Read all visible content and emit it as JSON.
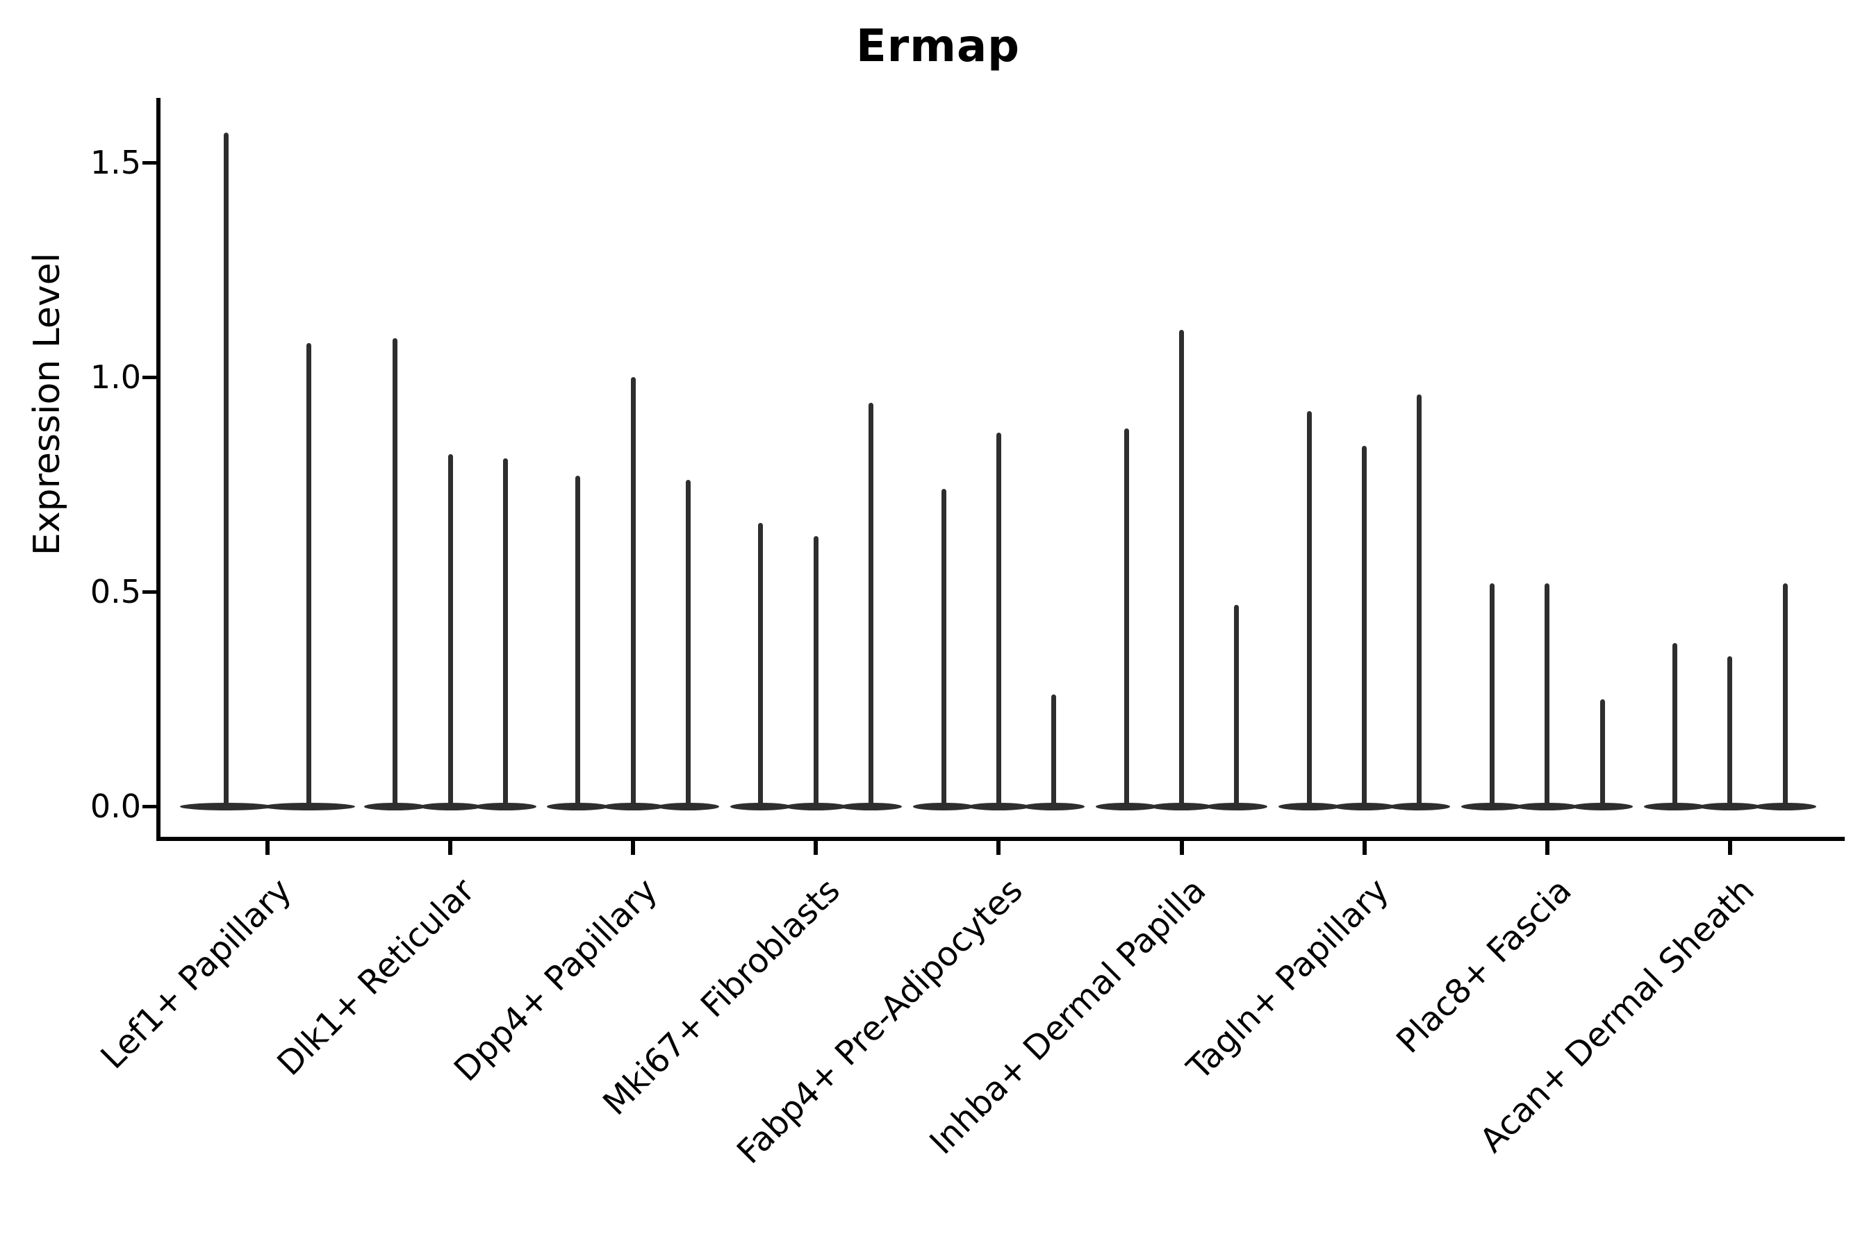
{
  "chart_data": {
    "type": "violin",
    "title": "Ermap",
    "ylabel": "Expression Level",
    "xlabel": "",
    "ylim": [
      0,
      1.65
    ],
    "yticks": [
      0.0,
      0.5,
      1.0,
      1.5
    ],
    "ytick_labels": [
      "0.0",
      "0.5",
      "1.0",
      "1.5"
    ],
    "grid": false,
    "legend": "none",
    "style": "thin black violin spikes with flat basal density band at zero, open top/right spines, x labels rotated 45 degrees",
    "categories": [
      "Lef1+ Papillary",
      "Dlk1+ Reticular",
      "Dpp4+ Papillary",
      "Mki67+ Fibroblasts",
      "Fabp4+ Pre-Adipocytes",
      "Inhba+ Dermal Papilla",
      "Tagln+ Papillary",
      "Plac8+ Fascia",
      "Acan+ Dermal Sheath"
    ],
    "groups": [
      {
        "category": "Lef1+ Papillary",
        "spikes": [
          1.57,
          1.08
        ]
      },
      {
        "category": "Dlk1+ Reticular",
        "spikes": [
          1.09,
          0.82,
          0.81
        ]
      },
      {
        "category": "Dpp4+ Papillary",
        "spikes": [
          0.77,
          1.0,
          0.76
        ]
      },
      {
        "category": "Mki67+ Fibroblasts",
        "spikes": [
          0.66,
          0.63,
          0.94
        ]
      },
      {
        "category": "Fabp4+ Pre-Adipocytes",
        "spikes": [
          0.74,
          0.87,
          0.26
        ]
      },
      {
        "category": "Inhba+ Dermal Papilla",
        "spikes": [
          0.88,
          1.11,
          0.47
        ]
      },
      {
        "category": "Tagln+ Papillary",
        "spikes": [
          0.92,
          0.84,
          0.96
        ]
      },
      {
        "category": "Plac8+ Fascia",
        "spikes": [
          0.52,
          0.52,
          0.25
        ]
      },
      {
        "category": "Acan+ Dermal Sheath",
        "spikes": [
          0.38,
          0.35,
          0.52
        ]
      }
    ],
    "colors": {
      "violin": "#2e2e2e",
      "spine": "#000000",
      "text": "#000000",
      "background": "#ffffff"
    }
  }
}
